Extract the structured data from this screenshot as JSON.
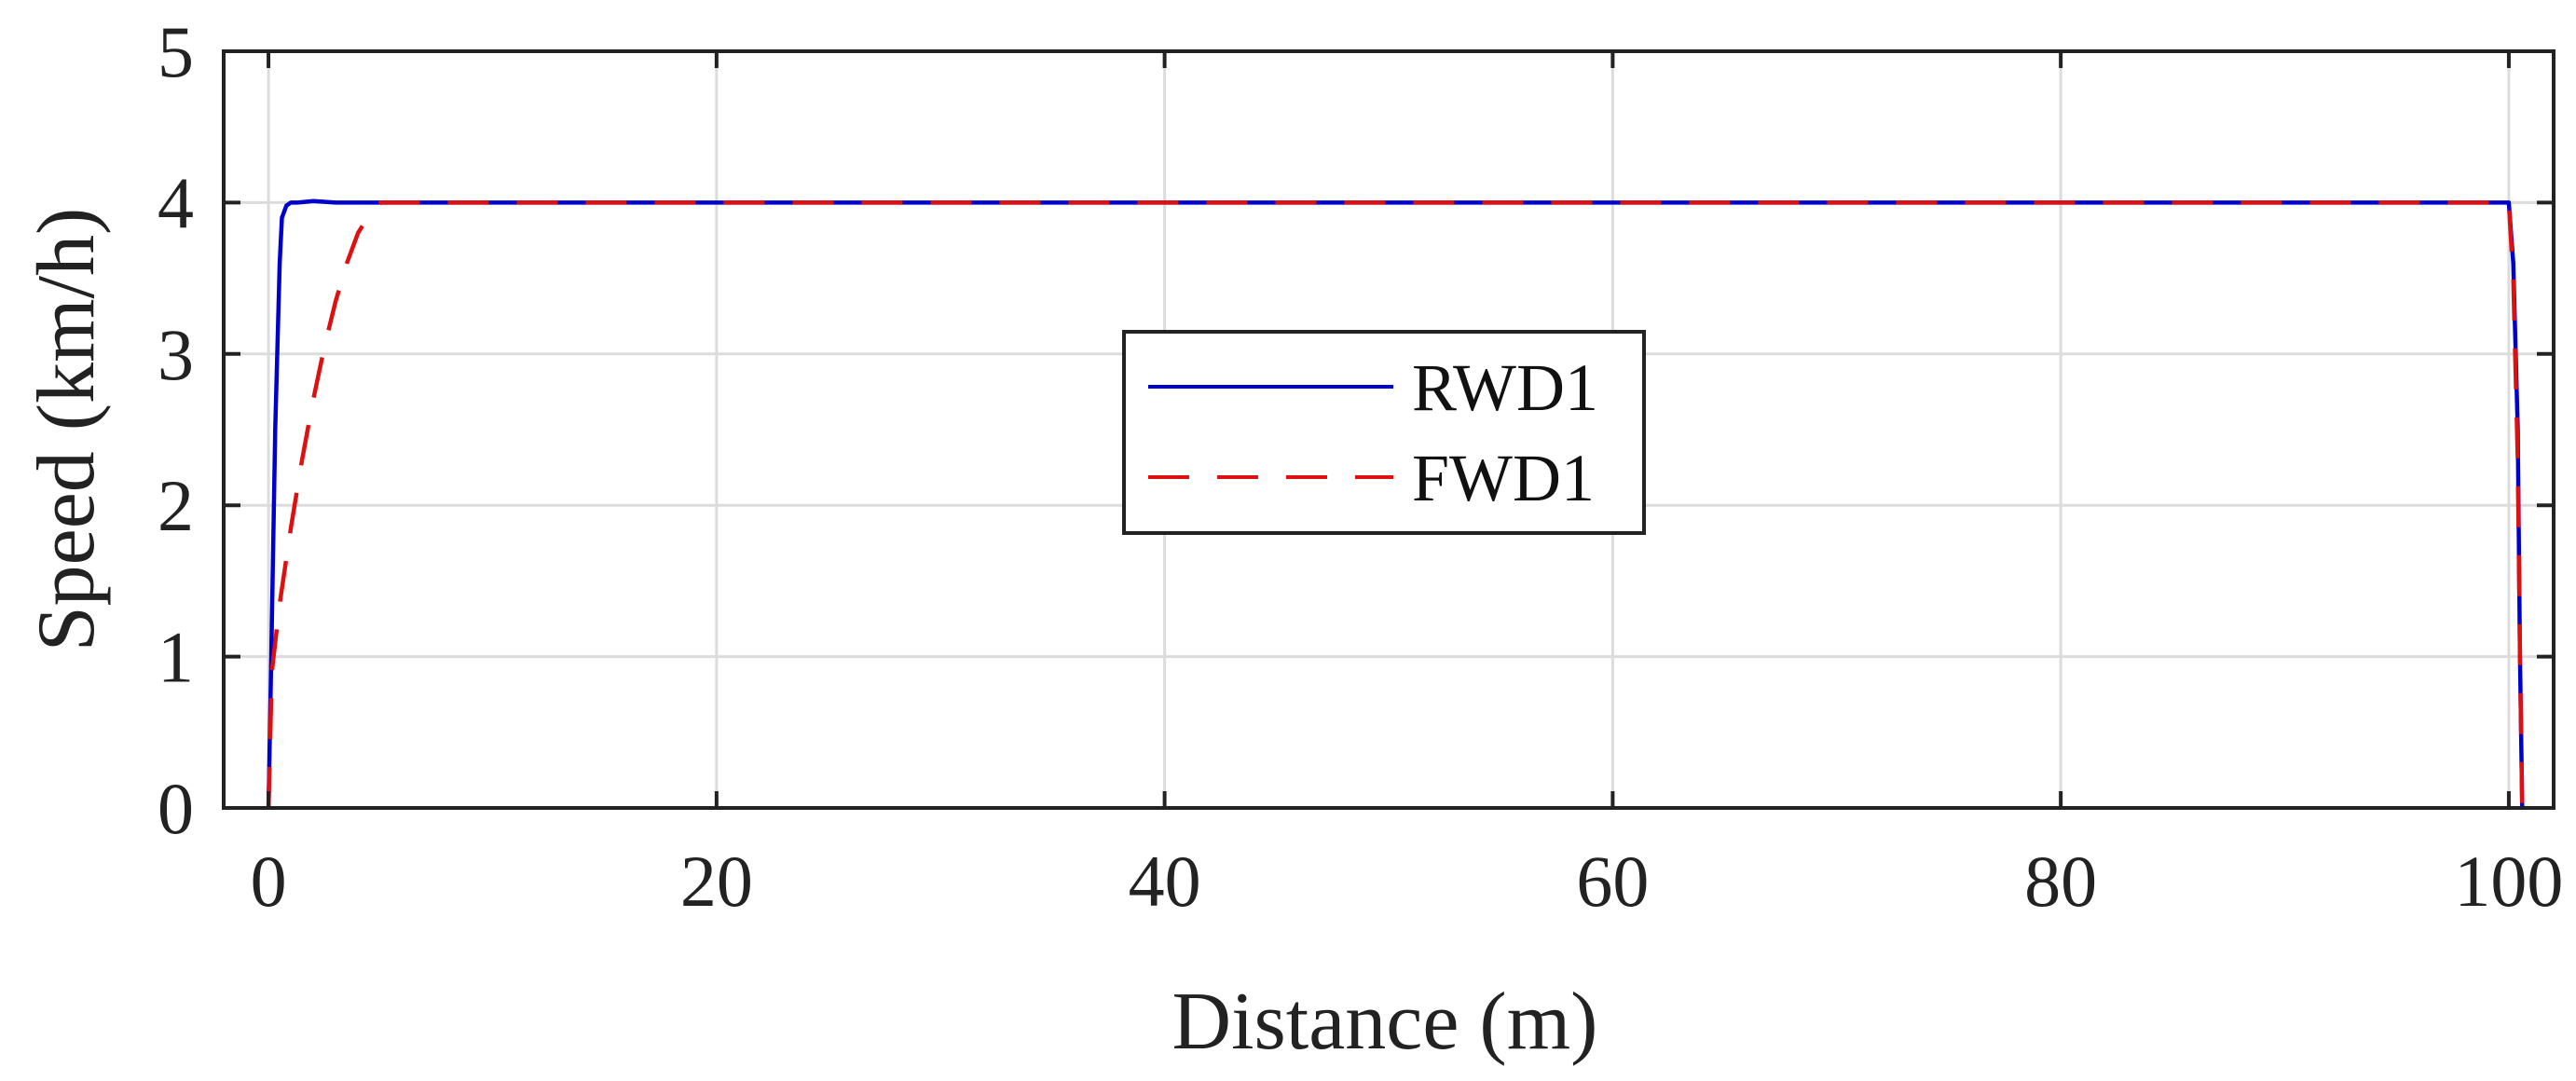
{
  "chart_data": {
    "type": "line",
    "xlabel": "Distance (m)",
    "ylabel": "Speed (km/h)",
    "xlim": [
      -2,
      102
    ],
    "ylim": [
      0,
      5
    ],
    "xticks": [
      0,
      20,
      40,
      60,
      80,
      100
    ],
    "yticks": [
      0,
      1,
      2,
      3,
      4,
      5
    ],
    "grid": true,
    "legend_position": "center",
    "series": [
      {
        "name": "RWD1",
        "color": "#0000cc",
        "style": "solid",
        "x": [
          0,
          0.1,
          0.3,
          0.5,
          0.6,
          0.8,
          1.0,
          1.3,
          2.0,
          3.0,
          50,
          100.0,
          100.2,
          100.4,
          100.5,
          100.6
        ],
        "y": [
          0,
          0.8,
          2.5,
          3.6,
          3.9,
          3.98,
          4.0,
          4.0,
          4.01,
          4.0,
          4.0,
          4.0,
          3.6,
          2.5,
          1.0,
          0
        ]
      },
      {
        "name": "FWD1",
        "color": "#dd1111",
        "style": "dashed",
        "x": [
          0,
          0.15,
          0.5,
          1.0,
          1.5,
          2.0,
          2.5,
          3.0,
          3.5,
          4.0,
          4.5,
          5.0,
          5.5,
          50,
          100.0,
          100.2,
          100.4,
          100.5,
          100.6
        ],
        "y": [
          0,
          0.9,
          1.35,
          1.85,
          2.3,
          2.7,
          3.05,
          3.35,
          3.6,
          3.8,
          3.92,
          4.0,
          4.0,
          4.0,
          4.0,
          3.5,
          2.3,
          1.0,
          0
        ]
      }
    ]
  }
}
